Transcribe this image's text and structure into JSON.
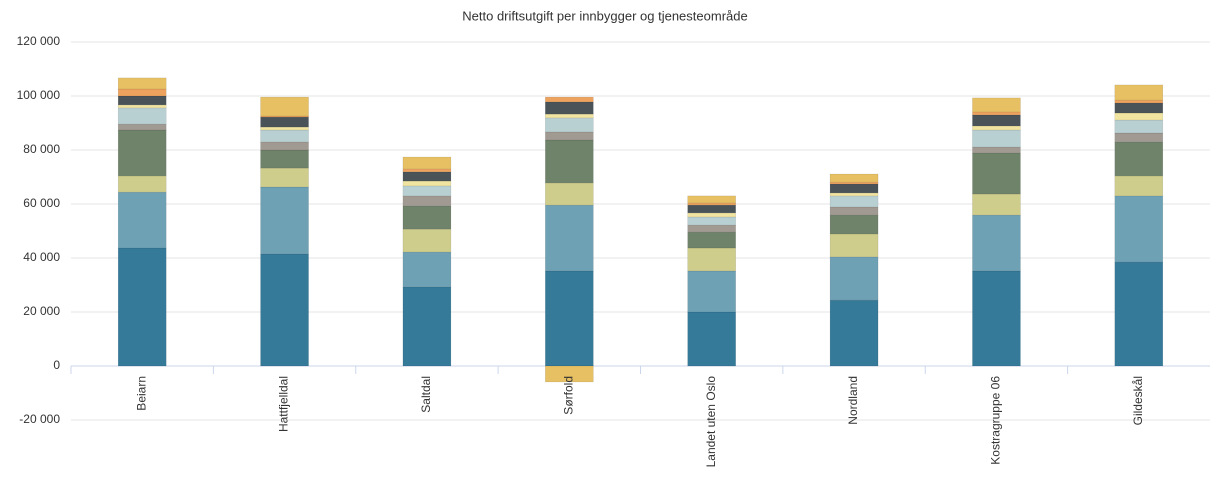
{
  "chart_data": {
    "type": "stacked-bar",
    "title": "Netto driftsutgift per innbygger og tjenesteområde",
    "categories": [
      "Beiarn",
      "Hattfjelldal",
      "Saltdal",
      "Sørfold",
      "Landet uten Oslo",
      "Nordland",
      "Kostragruppe 06",
      "Gildeskål"
    ],
    "series": [
      {
        "color": "#357a99",
        "values": [
          43700,
          41500,
          29300,
          35200,
          20000,
          24400,
          35200,
          38500
        ]
      },
      {
        "color": "#6fa1b5",
        "values": [
          20700,
          24800,
          12900,
          24400,
          15200,
          16000,
          20700,
          24500
        ]
      },
      {
        "color": "#cfcd8c",
        "values": [
          6000,
          7000,
          8500,
          8200,
          8500,
          8500,
          7800,
          7400
        ]
      },
      {
        "color": "#6f826a",
        "values": [
          17000,
          6700,
          8600,
          15900,
          5900,
          7000,
          15200,
          12600
        ]
      },
      {
        "color": "#a09a92",
        "values": [
          2200,
          3000,
          3700,
          3000,
          2600,
          3000,
          2200,
          3300
        ]
      },
      {
        "color": "#b9d0d2",
        "values": [
          6000,
          4400,
          3700,
          5200,
          3000,
          4100,
          6300,
          4800
        ]
      },
      {
        "color": "#f0e4a0",
        "values": [
          1100,
          1100,
          1800,
          1400,
          1500,
          1100,
          1500,
          2600
        ]
      },
      {
        "color": "#4a5458",
        "values": [
          3300,
          3700,
          3400,
          4500,
          2900,
          3300,
          4100,
          3700
        ]
      },
      {
        "color": "#eda25e",
        "values": [
          2600,
          400,
          1100,
          1800,
          800,
          700,
          1100,
          1100
        ]
      },
      {
        "color": "#e6c062",
        "values": [
          4100,
          7000,
          4400,
          -5900,
          2600,
          3000,
          5200,
          5600
        ]
      }
    ],
    "ylim": [
      -20000,
      120000
    ],
    "yticks": [
      {
        "value": -20000,
        "label": "-20 000"
      },
      0,
      {
        "value": 20000,
        "label": "20 000"
      },
      {
        "value": 40000,
        "label": "40 000"
      },
      {
        "value": 60000,
        "label": "60 000"
      },
      {
        "value": 80000,
        "label": "80 000"
      },
      {
        "value": 100000,
        "label": "100 000"
      },
      {
        "value": 120000,
        "label": "120 000"
      }
    ],
    "grid": true
  }
}
